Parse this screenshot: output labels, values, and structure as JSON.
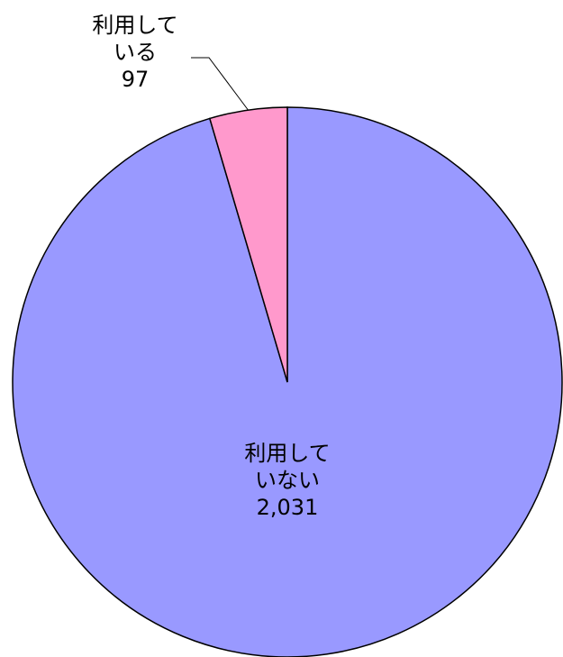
{
  "chart_data": {
    "type": "pie",
    "categories": [
      "利用していない",
      "利用している"
    ],
    "values": [
      2031,
      97
    ],
    "value_labels": [
      "2,031",
      "97"
    ],
    "colors": [
      "#9999ff",
      "#ff99cc"
    ]
  }
}
